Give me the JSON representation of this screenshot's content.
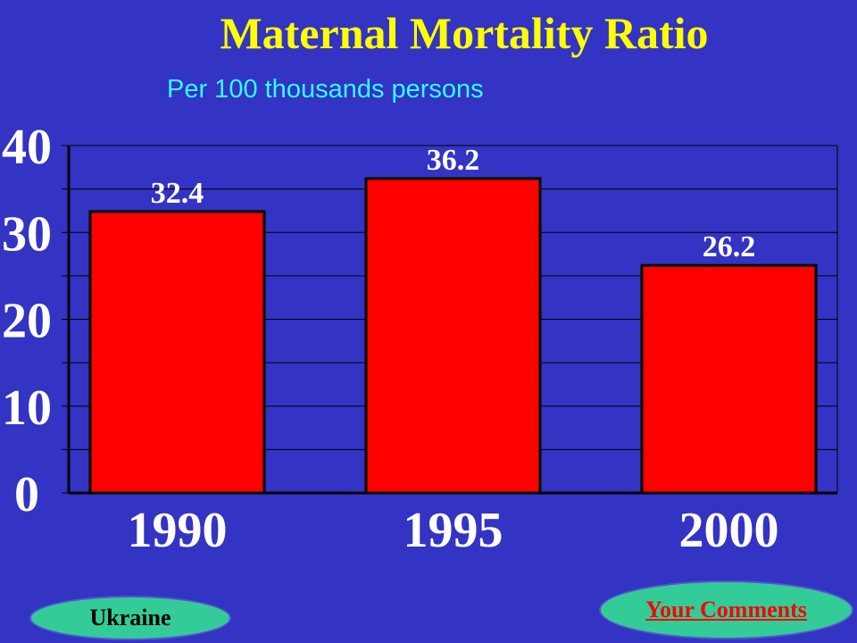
{
  "chart_data": {
    "type": "bar",
    "title": "Maternal Mortality Ratio",
    "subtitle": "Per 100 thousands persons",
    "categories": [
      "1990",
      "1995",
      "2000"
    ],
    "values": [
      32.4,
      36.2,
      26.2
    ],
    "value_labels": [
      "32.4",
      "36.2",
      "26.2"
    ],
    "ylim": [
      0,
      40
    ],
    "y_ticks": [
      0,
      10,
      20,
      30,
      40
    ],
    "grid": true,
    "bar_color": "#ff0000",
    "background_color": "#3333c4"
  },
  "footer": {
    "country_label": "Ukraine",
    "comments_label": "Your Comments"
  }
}
